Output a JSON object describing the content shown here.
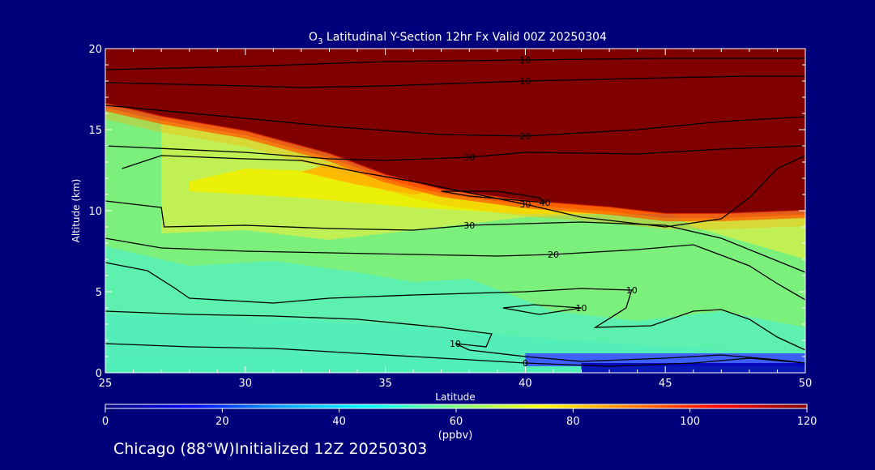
{
  "chart_data": {
    "type": "heatmap",
    "title": {
      "species": "O",
      "subscript": "3",
      "rest": " Latitudinal Y-Section 12hr  Fx Valid 00Z 20250304"
    },
    "xlabel": "Latitude",
    "ylabel": "Altitude (km)",
    "xlim": [
      25,
      50
    ],
    "ylim": [
      0,
      20
    ],
    "x_ticks": [
      "25",
      "30",
      "35",
      "40",
      "45",
      "50"
    ],
    "y_ticks": [
      "0",
      "5",
      "10",
      "15",
      "20"
    ],
    "grid": "off",
    "colorbar": {
      "min": 0,
      "max": 120,
      "ticks": [
        "0",
        "20",
        "40",
        "60",
        "80",
        "100",
        "120"
      ],
      "label": "(ppbv)",
      "colors": [
        "#00007f",
        "#0000ff",
        "#00a0ff",
        "#00ffff",
        "#80ff80",
        "#ffff00",
        "#ff8000",
        "#ff0000",
        "#800000"
      ]
    },
    "tropopause_km": [
      {
        "lat": 25,
        "alt": 16.6
      },
      {
        "lat": 27,
        "alt": 15.8
      },
      {
        "lat": 30,
        "alt": 14.9
      },
      {
        "lat": 33,
        "alt": 13.5
      },
      {
        "lat": 35,
        "alt": 12.2
      },
      {
        "lat": 37,
        "alt": 11.3
      },
      {
        "lat": 40,
        "alt": 10.6
      },
      {
        "lat": 43,
        "alt": 10.2
      },
      {
        "lat": 45,
        "alt": 9.8
      },
      {
        "lat": 47,
        "alt": 9.8
      },
      {
        "lat": 50,
        "alt": 10.0
      }
    ],
    "contours": [
      {
        "value": 10,
        "label": "10",
        "points": [
          [
            25,
            18.7
          ],
          [
            30,
            18.9
          ],
          [
            35,
            19.2
          ],
          [
            40,
            19.3
          ],
          [
            45,
            19.4
          ],
          [
            50,
            19.4
          ]
        ]
      },
      {
        "value": 10,
        "label": "10",
        "points": [
          [
            25,
            17.9
          ],
          [
            30,
            17.7
          ],
          [
            32,
            17.6
          ],
          [
            35,
            17.7
          ],
          [
            40,
            18.0
          ],
          [
            45,
            18.2
          ],
          [
            48,
            18.3
          ],
          [
            50,
            18.3
          ]
        ]
      },
      {
        "value": 20,
        "label": "20",
        "points": [
          [
            25,
            16.5
          ],
          [
            30,
            15.7
          ],
          [
            33,
            15.2
          ],
          [
            37,
            14.7
          ],
          [
            40,
            14.6
          ],
          [
            44,
            15.0
          ],
          [
            47,
            15.5
          ],
          [
            50,
            15.8
          ]
        ]
      },
      {
        "value": 30,
        "label": "30",
        "points": [
          [
            25,
            14.0
          ],
          [
            30,
            13.6
          ],
          [
            33,
            13.2
          ],
          [
            35,
            13.1
          ],
          [
            38,
            13.3
          ],
          [
            40,
            13.6
          ],
          [
            44,
            13.5
          ],
          [
            47,
            13.8
          ],
          [
            50,
            14.0
          ]
        ]
      },
      {
        "value": 30,
        "label": "30",
        "points": [
          [
            25.6,
            12.6
          ],
          [
            27,
            13.4
          ],
          [
            30,
            13.2
          ],
          [
            32,
            13.1
          ],
          [
            34,
            12.4
          ],
          [
            36,
            11.8
          ],
          [
            38,
            11.1
          ],
          [
            40,
            10.4
          ],
          [
            42,
            9.6
          ],
          [
            45,
            9.0
          ],
          [
            47,
            9.5
          ],
          [
            48,
            10.8
          ],
          [
            49,
            12.6
          ],
          [
            50,
            13.4
          ]
        ]
      },
      {
        "value": 40,
        "label": "40",
        "points": [
          [
            37,
            11.2
          ],
          [
            39,
            11.2
          ],
          [
            40.5,
            10.8
          ],
          [
            40.7,
            10.5
          ],
          [
            38,
            10.9
          ],
          [
            37,
            11.2
          ]
        ]
      },
      {
        "value": 30,
        "label": "30",
        "points": [
          [
            25,
            10.6
          ],
          [
            27,
            10.2
          ],
          [
            27.1,
            9.0
          ],
          [
            30,
            9.1
          ],
          [
            33,
            8.9
          ],
          [
            36,
            8.8
          ],
          [
            38,
            9.1
          ],
          [
            40,
            9.2
          ],
          [
            42,
            9.3
          ],
          [
            45,
            9.1
          ],
          [
            47,
            8.3
          ],
          [
            49,
            6.9
          ],
          [
            50,
            6.2
          ]
        ]
      },
      {
        "value": 20,
        "label": "20",
        "points": [
          [
            25,
            8.3
          ],
          [
            27,
            7.7
          ],
          [
            30,
            7.5
          ],
          [
            33,
            7.4
          ],
          [
            36,
            7.3
          ],
          [
            39,
            7.2
          ],
          [
            41,
            7.3
          ],
          [
            44,
            7.6
          ],
          [
            46,
            7.9
          ],
          [
            48,
            6.6
          ],
          [
            49,
            5.5
          ],
          [
            50,
            4.5
          ]
        ]
      },
      {
        "value": 10,
        "label": "10",
        "points": [
          [
            25,
            6.8
          ],
          [
            26.5,
            6.3
          ],
          [
            27.5,
            5.2
          ],
          [
            28,
            4.6
          ],
          [
            31,
            4.3
          ],
          [
            33,
            4.6
          ],
          [
            36,
            4.8
          ],
          [
            40,
            5.0
          ],
          [
            42,
            5.2
          ],
          [
            43.8,
            5.1
          ],
          [
            43.6,
            4.0
          ],
          [
            42.5,
            2.8
          ],
          [
            44.5,
            2.9
          ],
          [
            46,
            3.8
          ],
          [
            47,
            3.9
          ],
          [
            48,
            3.3
          ],
          [
            49,
            2.2
          ],
          [
            50,
            1.4
          ]
        ]
      },
      {
        "value": 10,
        "label": "10",
        "points": [
          [
            39.2,
            4.0
          ],
          [
            40.3,
            4.2
          ],
          [
            42,
            4.0
          ],
          [
            40.5,
            3.6
          ],
          [
            39.2,
            4.0
          ]
        ]
      },
      {
        "value": 10,
        "label": "10",
        "points": [
          [
            25,
            3.8
          ],
          [
            28,
            3.6
          ],
          [
            31,
            3.5
          ],
          [
            34,
            3.3
          ],
          [
            37,
            2.8
          ],
          [
            38.8,
            2.4
          ],
          [
            38.6,
            1.6
          ],
          [
            37.5,
            1.8
          ],
          [
            38,
            1.4
          ],
          [
            40,
            1.0
          ],
          [
            42,
            0.7
          ],
          [
            45,
            0.9
          ],
          [
            47,
            1.1
          ],
          [
            49,
            0.8
          ],
          [
            50,
            0.6
          ]
        ]
      },
      {
        "value": 0,
        "label": "0",
        "points": [
          [
            25,
            1.8
          ],
          [
            28,
            1.6
          ],
          [
            31,
            1.5
          ],
          [
            34,
            1.2
          ],
          [
            37,
            0.9
          ],
          [
            40,
            0.6
          ],
          [
            43,
            0.4
          ],
          [
            46,
            0.6
          ],
          [
            48,
            0.9
          ],
          [
            50,
            0.6
          ]
        ]
      }
    ]
  },
  "footer": {
    "location": "Chicago (88°W)",
    "initialized": "Initialized 12Z 20250303"
  }
}
